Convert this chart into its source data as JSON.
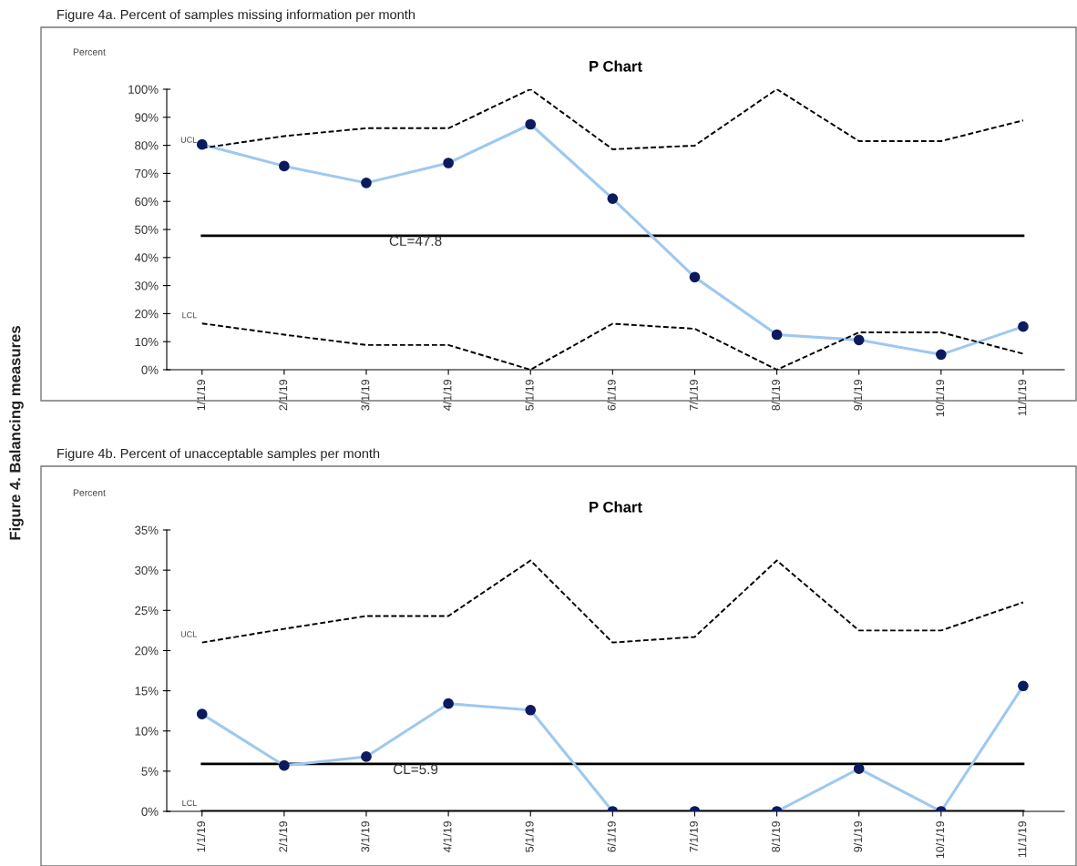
{
  "chart_data": [
    {
      "type": "line",
      "title": "P Chart",
      "ylabel": "Percent",
      "annotations": [
        "Figure 4a. Percent of samples missing information per month",
        "Figure 4. Balancing measures"
      ],
      "categories": [
        "1/1/19",
        "2/1/19",
        "3/1/19",
        "4/1/19",
        "5/1/19",
        "6/1/19",
        "7/1/19",
        "8/1/19",
        "9/1/19",
        "10/1/19",
        "11/1/19"
      ],
      "series": [
        {
          "color": "#9ec8f0",
          "line_style": "solid",
          "values": [
            80.3,
            72.6,
            66.6,
            73.7,
            87.5,
            61,
            33,
            12.5,
            10.6,
            5.4,
            15.4
          ]
        },
        {
          "type": "scatter",
          "color": "#0d1b5e",
          "marker": "circle",
          "values": [
            80.3,
            72.6,
            66.6,
            73.7,
            87.5,
            61,
            33,
            12.5,
            10.6,
            5.4,
            15.4
          ]
        },
        {
          "name": "UCL",
          "color": "#000000",
          "line_style": "dashed",
          "values": [
            79,
            83.3,
            86.1,
            86.1,
            100,
            78.6,
            79.9,
            100,
            81.5,
            81.5,
            88.9
          ]
        },
        {
          "name": "LCL",
          "color": "#000000",
          "line_style": "dashed",
          "values": [
            16.5,
            12.5,
            8.8,
            8.8,
            0,
            16.4,
            14.6,
            0,
            13.3,
            13.3,
            5.7
          ]
        }
      ],
      "ref_lines": [
        {
          "axis": "y",
          "value": 47.8,
          "label": "CL=47.8",
          "color": "#000000",
          "line_style": "solid"
        }
      ],
      "ylim": [
        0,
        100
      ],
      "yticks": [
        {
          "value": 0,
          "label": "0%"
        },
        {
          "value": 10,
          "label": "10%"
        },
        {
          "value": 20,
          "label": "20%"
        },
        {
          "value": 30,
          "label": "30%"
        },
        {
          "value": 40,
          "label": "40%"
        },
        {
          "value": 50,
          "label": "50%"
        },
        {
          "value": 60,
          "label": "60%"
        },
        {
          "value": 70,
          "label": "70%"
        },
        {
          "value": 80,
          "label": "80%"
        },
        {
          "value": 90,
          "label": "90%"
        },
        {
          "value": 100,
          "label": "100%"
        }
      ],
      "grid": false,
      "legend": false
    },
    {
      "type": "line",
      "title": "P Chart",
      "ylabel": "Percent",
      "annotations": [
        "Figure 4b. Percent of unacceptable samples per month"
      ],
      "categories": [
        "1/1/19",
        "2/1/19",
        "3/1/19",
        "4/1/19",
        "5/1/19",
        "6/1/19",
        "7/1/19",
        "8/1/19",
        "9/1/19",
        "10/1/19",
        "11/1/19"
      ],
      "series": [
        {
          "color": "#9ec8f0",
          "line_style": "solid",
          "values": [
            12.1,
            5.7,
            6.8,
            13.4,
            12.6,
            0,
            0,
            0,
            5.3,
            0,
            15.6
          ]
        },
        {
          "type": "scatter",
          "color": "#0d1b5e",
          "marker": "circle",
          "values": [
            12.1,
            5.7,
            6.8,
            13.4,
            12.6,
            0,
            0,
            0,
            5.3,
            0,
            15.6
          ]
        },
        {
          "name": "UCL",
          "color": "#000000",
          "line_style": "dashed",
          "values": [
            21,
            22.7,
            24.3,
            24.3,
            31.2,
            21,
            21.7,
            31.2,
            22.5,
            22.5,
            26
          ]
        },
        {
          "name": "LCL",
          "color": "#000000",
          "line_style": "solid",
          "values": [
            0,
            0,
            0,
            0,
            0,
            0,
            0,
            0,
            0,
            0,
            0
          ]
        }
      ],
      "ref_lines": [
        {
          "axis": "y",
          "value": 5.9,
          "label": "CL=5.9",
          "color": "#000000",
          "line_style": "solid"
        }
      ],
      "ylim": [
        0,
        35
      ],
      "yticks": [
        {
          "value": 0,
          "label": "0%"
        },
        {
          "value": 5,
          "label": "5%"
        },
        {
          "value": 10,
          "label": "10%"
        },
        {
          "value": 15,
          "label": "15%"
        },
        {
          "value": 20,
          "label": "20%"
        },
        {
          "value": 25,
          "label": "25%"
        },
        {
          "value": 30,
          "label": "30%"
        },
        {
          "value": 35,
          "label": "35%"
        }
      ],
      "grid": false,
      "legend": false
    }
  ]
}
